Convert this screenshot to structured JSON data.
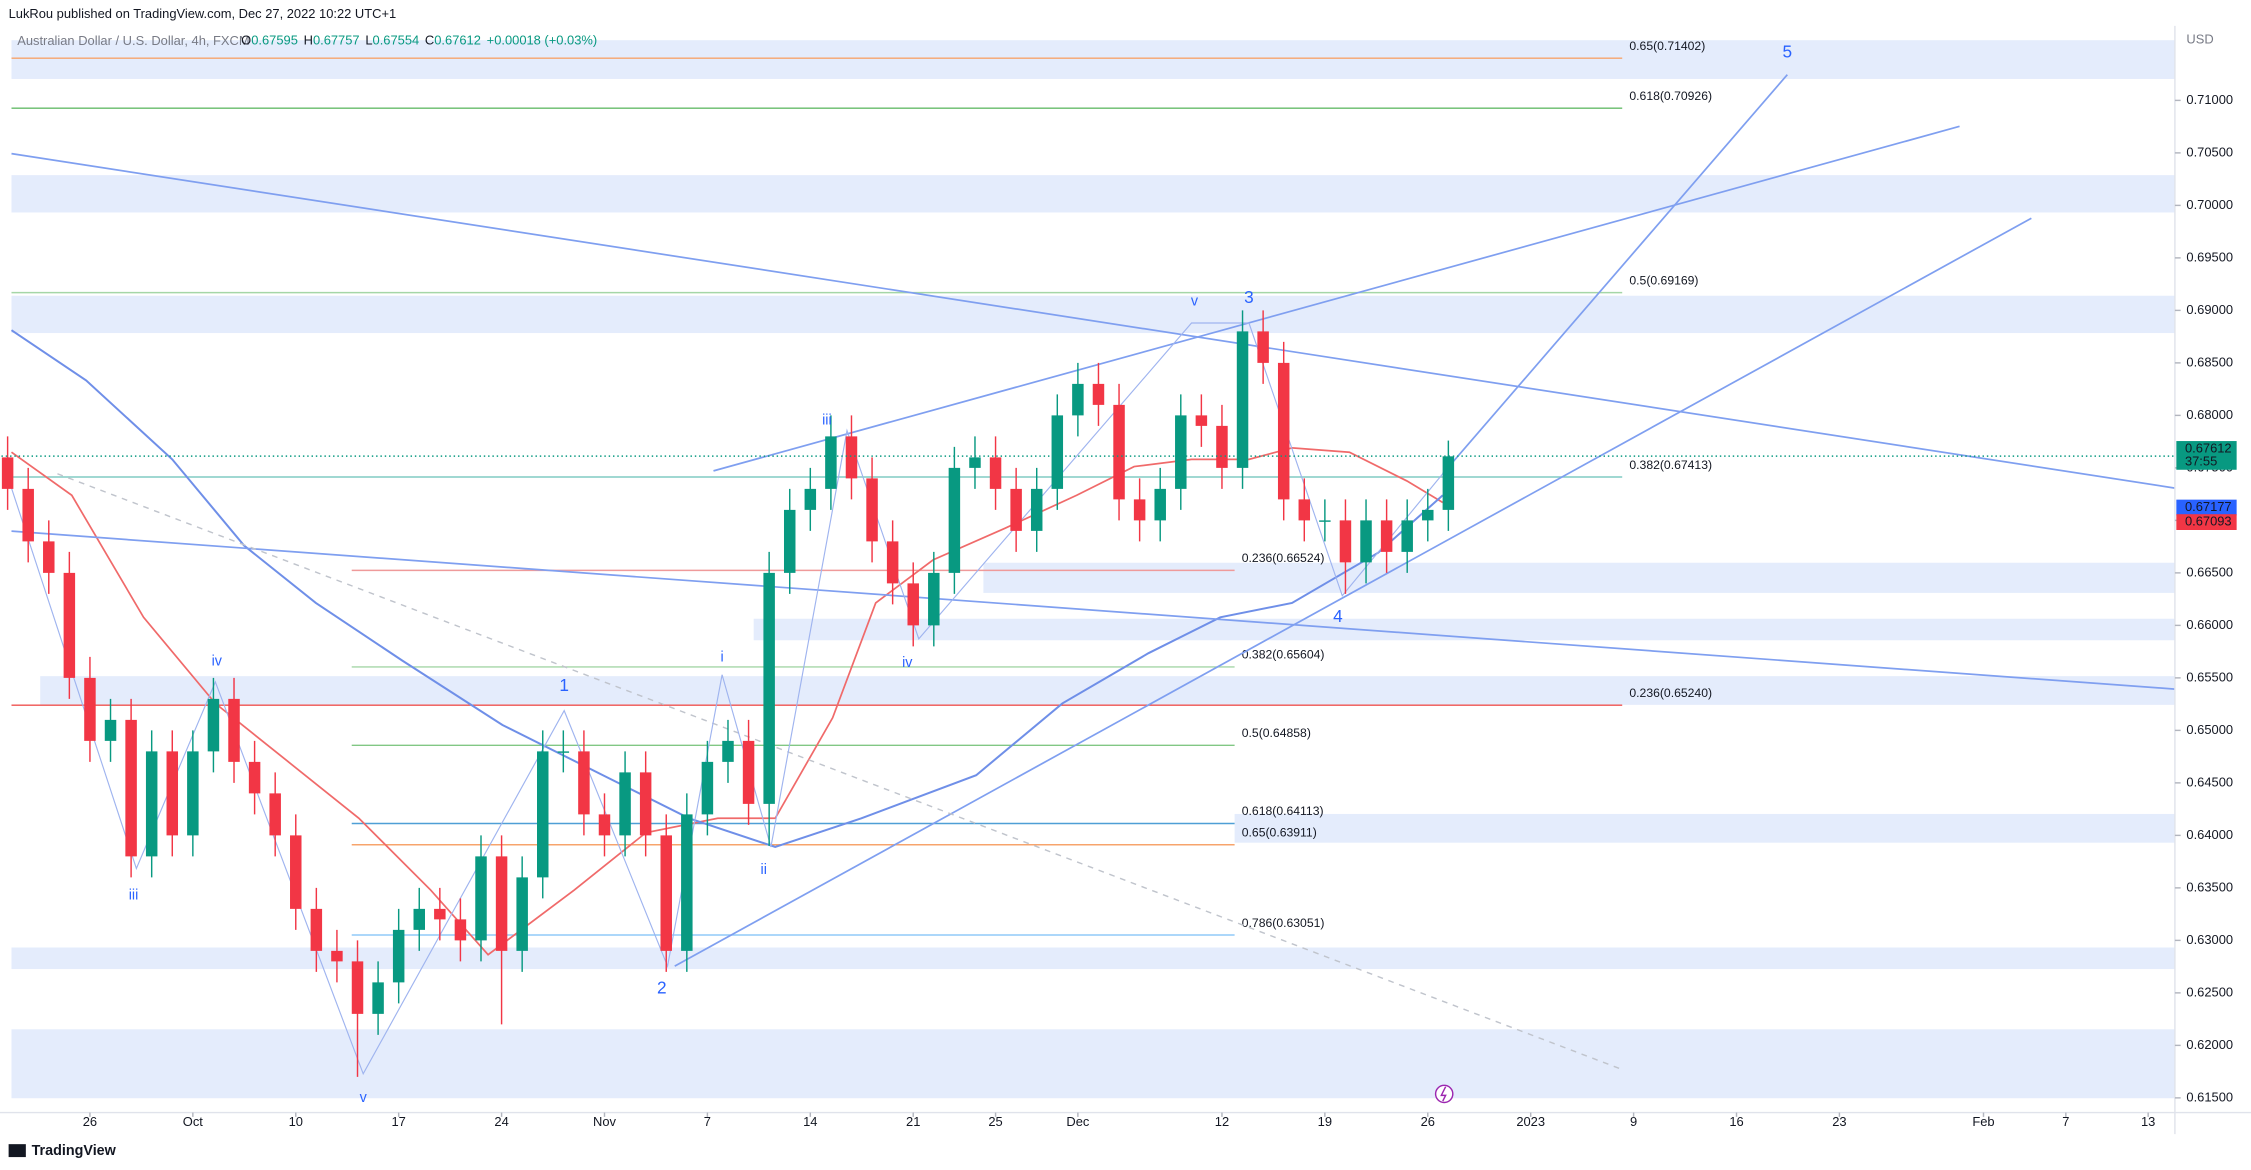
{
  "header": {
    "publisher": "LukRou published on TradingView.com, Dec 27, 2022 10:22 UTC+1",
    "brand": "TradingView"
  },
  "legend": {
    "symbol": "Australian Dollar / U.S. Dollar, 4h, FXCM",
    "items": [
      {
        "k": "O",
        "v": "0.67595"
      },
      {
        "k": "H",
        "v": "0.67757"
      },
      {
        "k": "L",
        "v": "0.67554"
      },
      {
        "k": "C",
        "v": "0.67612"
      }
    ],
    "change": "+0.00018 (+0.03%)"
  },
  "chart_data": {
    "type": "candlestick",
    "currency": "USD",
    "up_color": "#089981",
    "down_color": "#f23645",
    "open": [
      0.676,
      0.673,
      0.668,
      0.665,
      0.655,
      0.649,
      0.651,
      0.638,
      0.648,
      0.64,
      0.648,
      0.653,
      0.647,
      0.644,
      0.64,
      0.633,
      0.629,
      0.628,
      0.623,
      0.626,
      0.631,
      0.633,
      0.632,
      0.63,
      0.638,
      0.629,
      0.636,
      0.648,
      0.648,
      0.642,
      0.64,
      0.646,
      0.64,
      0.629,
      0.642,
      0.647,
      0.649,
      0.643,
      0.665,
      0.671,
      0.673,
      0.678,
      0.674,
      0.668,
      0.664,
      0.66,
      0.665,
      0.675,
      0.676,
      0.673,
      0.669,
      0.673,
      0.68,
      0.683,
      0.681,
      0.672,
      0.67,
      0.673,
      0.68,
      0.679,
      0.675,
      0.688,
      0.685,
      0.672,
      0.67,
      0.67,
      0.666,
      0.67,
      0.667,
      0.67,
      0.671
    ],
    "high": [
      0.678,
      0.675,
      0.67,
      0.667,
      0.657,
      0.653,
      0.653,
      0.65,
      0.65,
      0.65,
      0.655,
      0.655,
      0.649,
      0.646,
      0.642,
      0.635,
      0.631,
      0.63,
      0.628,
      0.633,
      0.635,
      0.635,
      0.634,
      0.64,
      0.64,
      0.638,
      0.65,
      0.65,
      0.65,
      0.644,
      0.648,
      0.648,
      0.642,
      0.644,
      0.649,
      0.651,
      0.651,
      0.667,
      0.673,
      0.675,
      0.68,
      0.68,
      0.676,
      0.67,
      0.666,
      0.667,
      0.677,
      0.678,
      0.678,
      0.675,
      0.675,
      0.682,
      0.685,
      0.685,
      0.683,
      0.674,
      0.675,
      0.682,
      0.682,
      0.681,
      0.69,
      0.69,
      0.687,
      0.674,
      0.672,
      0.672,
      0.672,
      0.672,
      0.672,
      0.673,
      0.6776
    ],
    "low": [
      0.671,
      0.666,
      0.663,
      0.653,
      0.647,
      0.647,
      0.636,
      0.636,
      0.638,
      0.638,
      0.646,
      0.645,
      0.642,
      0.638,
      0.631,
      0.627,
      0.626,
      0.617,
      0.621,
      0.624,
      0.629,
      0.63,
      0.628,
      0.628,
      0.622,
      0.627,
      0.634,
      0.646,
      0.64,
      0.638,
      0.638,
      0.638,
      0.627,
      0.627,
      0.64,
      0.645,
      0.641,
      0.639,
      0.663,
      0.669,
      0.671,
      0.672,
      0.666,
      0.662,
      0.658,
      0.658,
      0.663,
      0.673,
      0.671,
      0.667,
      0.667,
      0.671,
      0.678,
      0.679,
      0.67,
      0.668,
      0.668,
      0.671,
      0.677,
      0.673,
      0.673,
      0.683,
      0.67,
      0.668,
      0.668,
      0.663,
      0.664,
      0.665,
      0.665,
      0.668,
      0.669
    ],
    "close": [
      0.673,
      0.668,
      0.665,
      0.655,
      0.649,
      0.651,
      0.638,
      0.648,
      0.64,
      0.648,
      0.653,
      0.647,
      0.644,
      0.64,
      0.633,
      0.629,
      0.628,
      0.623,
      0.626,
      0.631,
      0.633,
      0.632,
      0.63,
      0.638,
      0.629,
      0.636,
      0.648,
      0.648,
      0.642,
      0.64,
      0.646,
      0.64,
      0.629,
      0.642,
      0.647,
      0.649,
      0.643,
      0.665,
      0.671,
      0.673,
      0.678,
      0.674,
      0.668,
      0.664,
      0.66,
      0.665,
      0.675,
      0.676,
      0.673,
      0.669,
      0.673,
      0.68,
      0.683,
      0.681,
      0.672,
      0.67,
      0.673,
      0.68,
      0.679,
      0.675,
      0.688,
      0.685,
      0.672,
      0.67,
      0.67,
      0.666,
      0.67,
      0.667,
      0.67,
      0.671,
      0.6761
    ],
    "xlim": [
      -0.3,
      105.3
    ],
    "xticks": [
      {
        "value": 4,
        "label": "26"
      },
      {
        "value": 9,
        "label": "Oct"
      },
      {
        "value": 14,
        "label": "10"
      },
      {
        "value": 19,
        "label": "17"
      },
      {
        "value": 24,
        "label": "24"
      },
      {
        "value": 29,
        "label": "Nov"
      },
      {
        "value": 34,
        "label": "7"
      },
      {
        "value": 39,
        "label": "14"
      },
      {
        "value": 44,
        "label": "21"
      },
      {
        "value": 48,
        "label": "25"
      },
      {
        "value": 52,
        "label": "Dec"
      },
      {
        "value": 59,
        "label": "12"
      },
      {
        "value": 64,
        "label": "19"
      },
      {
        "value": 69,
        "label": "26"
      },
      {
        "value": 74,
        "label": "2023"
      },
      {
        "value": 79,
        "label": "9"
      },
      {
        "value": 84,
        "label": "16"
      },
      {
        "value": 89,
        "label": "23"
      },
      {
        "value": 96,
        "label": "Feb"
      },
      {
        "value": 100,
        "label": "7"
      },
      {
        "value": 104,
        "label": "13"
      }
    ],
    "ylim": [
      0.6136,
      0.7171
    ],
    "yticks": [
      {
        "value": 0.615,
        "label": "0.61500"
      },
      {
        "value": 0.62,
        "label": "0.62000"
      },
      {
        "value": 0.625,
        "label": "0.62500"
      },
      {
        "value": 0.63,
        "label": "0.63000"
      },
      {
        "value": 0.635,
        "label": "0.63500"
      },
      {
        "value": 0.64,
        "label": "0.64000"
      },
      {
        "value": 0.645,
        "label": "0.64500"
      },
      {
        "value": 0.65,
        "label": "0.65000"
      },
      {
        "value": 0.655,
        "label": "0.65500"
      },
      {
        "value": 0.66,
        "label": "0.66000"
      },
      {
        "value": 0.665,
        "label": "0.66500"
      },
      {
        "value": 0.67,
        "label": "0.67000"
      },
      {
        "value": 0.675,
        "label": "0.67500"
      },
      {
        "value": 0.68,
        "label": "0.68000"
      },
      {
        "value": 0.685,
        "label": "0.68500"
      },
      {
        "value": 0.69,
        "label": "0.69000"
      },
      {
        "value": 0.695,
        "label": "0.69500"
      },
      {
        "value": 0.7,
        "label": "0.70000"
      },
      {
        "value": 0.705,
        "label": "0.70500"
      },
      {
        "value": 0.71,
        "label": "0.71000"
      }
    ],
    "price_tags": [
      {
        "value": 0.67612,
        "color": "#089981",
        "countdown": "37:55"
      },
      {
        "value": 0.67177,
        "color": "#2962ff"
      },
      {
        "value": 0.67093,
        "color": "#f23645"
      }
    ],
    "fib_levels": [
      {
        "label": "0.65(0.71402)",
        "value": 0.71402,
        "color": "#f7a46c",
        "from": 8,
        "to": 1130
      },
      {
        "label": "0.618(0.70926)",
        "value": 0.70926,
        "color": "#66bb6a",
        "from": 8,
        "to": 1130
      },
      {
        "label": "0.5(0.69169)",
        "value": 0.69169,
        "color": "#a5d6a7",
        "from": 8,
        "to": 1130
      },
      {
        "label": "0.382(0.67413)",
        "value": 0.67413,
        "color": "#80cbc4",
        "from": 8,
        "to": 1130
      },
      {
        "label": "0.236(0.65240)",
        "value": 0.6524,
        "color": "#ef5350",
        "from": 8,
        "to": 1130
      },
      {
        "label": "0.236(0.66524)",
        "value": 0.66524,
        "color": "#ef9a9a",
        "from": 245,
        "to": 860
      },
      {
        "label": "0.382(0.65604)",
        "value": 0.65604,
        "color": "#a5d6a7",
        "from": 245,
        "to": 860
      },
      {
        "label": "0.5(0.64858)",
        "value": 0.64858,
        "color": "#81c784",
        "from": 245,
        "to": 860
      },
      {
        "label": "0.618(0.64113)",
        "value": 0.64113,
        "color": "#4f9fd6",
        "from": 245,
        "to": 860
      },
      {
        "label": "0.65(0.63911)",
        "value": 0.63911,
        "color": "#f7a46c",
        "from": 245,
        "to": 860
      },
      {
        "label": "0.786(0.63051)",
        "value": 0.63051,
        "color": "#90caf9",
        "from": 245,
        "to": 860
      }
    ],
    "wave_labels": [
      "5",
      "3",
      "v",
      "iii",
      "iv",
      "4",
      "i",
      "1",
      "iv",
      "iii",
      "2",
      "ii",
      "v"
    ]
  }
}
